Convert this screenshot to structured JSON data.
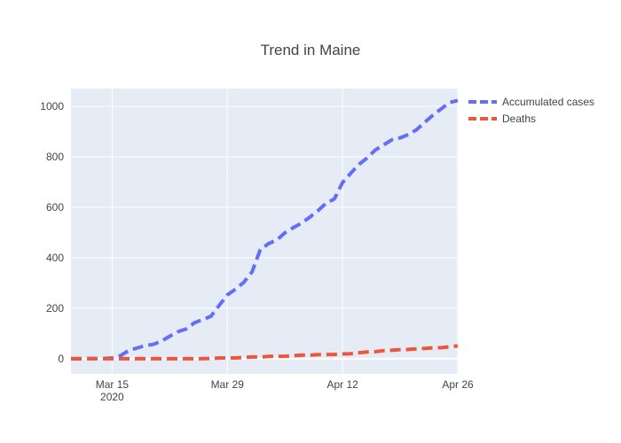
{
  "chart_data": {
    "type": "line",
    "title": "Trend in Maine",
    "xlabel": "",
    "ylabel": "",
    "x_range": [
      "2020-03-10",
      "2020-04-26"
    ],
    "ylim": [
      -60,
      1070
    ],
    "x_ticks": [
      {
        "date": "2020-03-15",
        "label": "Mar 15",
        "sublabel": "2020"
      },
      {
        "date": "2020-03-29",
        "label": "Mar 29",
        "sublabel": ""
      },
      {
        "date": "2020-04-12",
        "label": "Apr 12",
        "sublabel": ""
      },
      {
        "date": "2020-04-26",
        "label": "Apr 26",
        "sublabel": ""
      }
    ],
    "y_ticks": [
      0,
      200,
      400,
      600,
      800,
      1000
    ],
    "grid": true,
    "legend_position": "top-right",
    "background": "#e5ecf6",
    "series": [
      {
        "name": "Accumulated cases",
        "color": "#636efa",
        "dash": "dashed",
        "points": [
          [
            "2020-03-10",
            0
          ],
          [
            "2020-03-12",
            1
          ],
          [
            "2020-03-14",
            1
          ],
          [
            "2020-03-15",
            3
          ],
          [
            "2020-03-16",
            12
          ],
          [
            "2020-03-17",
            32
          ],
          [
            "2020-03-18",
            42
          ],
          [
            "2020-03-19",
            52
          ],
          [
            "2020-03-20",
            57
          ],
          [
            "2020-03-21",
            70
          ],
          [
            "2020-03-22",
            89
          ],
          [
            "2020-03-23",
            107
          ],
          [
            "2020-03-24",
            118
          ],
          [
            "2020-03-25",
            142
          ],
          [
            "2020-03-26",
            155
          ],
          [
            "2020-03-27",
            168
          ],
          [
            "2020-03-28",
            211
          ],
          [
            "2020-03-29",
            253
          ],
          [
            "2020-03-30",
            275
          ],
          [
            "2020-03-31",
            303
          ],
          [
            "2020-04-01",
            344
          ],
          [
            "2020-04-02",
            432
          ],
          [
            "2020-04-03",
            456
          ],
          [
            "2020-04-04",
            470
          ],
          [
            "2020-04-05",
            499
          ],
          [
            "2020-04-06",
            519
          ],
          [
            "2020-04-07",
            537
          ],
          [
            "2020-04-08",
            560
          ],
          [
            "2020-04-09",
            586
          ],
          [
            "2020-04-10",
            616
          ],
          [
            "2020-04-11",
            633
          ],
          [
            "2020-04-12",
            698
          ],
          [
            "2020-04-13",
            735
          ],
          [
            "2020-04-14",
            770
          ],
          [
            "2020-04-15",
            796
          ],
          [
            "2020-04-16",
            827
          ],
          [
            "2020-04-17",
            847
          ],
          [
            "2020-04-18",
            867
          ],
          [
            "2020-04-19",
            875
          ],
          [
            "2020-04-20",
            888
          ],
          [
            "2020-04-21",
            907
          ],
          [
            "2020-04-22",
            937
          ],
          [
            "2020-04-23",
            965
          ],
          [
            "2020-04-24",
            990
          ],
          [
            "2020-04-25",
            1015
          ],
          [
            "2020-04-26",
            1023
          ]
        ]
      },
      {
        "name": "Deaths",
        "color": "#ef553b",
        "dash": "dashed",
        "points": [
          [
            "2020-03-10",
            0
          ],
          [
            "2020-03-15",
            0
          ],
          [
            "2020-03-20",
            0
          ],
          [
            "2020-03-25",
            0
          ],
          [
            "2020-03-27",
            1
          ],
          [
            "2020-03-28",
            3
          ],
          [
            "2020-03-29",
            3
          ],
          [
            "2020-03-30",
            3
          ],
          [
            "2020-03-31",
            5
          ],
          [
            "2020-04-01",
            7
          ],
          [
            "2020-04-02",
            7
          ],
          [
            "2020-04-03",
            9
          ],
          [
            "2020-04-04",
            10
          ],
          [
            "2020-04-05",
            10
          ],
          [
            "2020-04-06",
            12
          ],
          [
            "2020-04-07",
            14
          ],
          [
            "2020-04-08",
            14
          ],
          [
            "2020-04-09",
            16
          ],
          [
            "2020-04-10",
            17
          ],
          [
            "2020-04-11",
            17
          ],
          [
            "2020-04-12",
            19
          ],
          [
            "2020-04-13",
            20
          ],
          [
            "2020-04-14",
            24
          ],
          [
            "2020-04-15",
            27
          ],
          [
            "2020-04-16",
            28
          ],
          [
            "2020-04-17",
            32
          ],
          [
            "2020-04-18",
            34
          ],
          [
            "2020-04-19",
            36
          ],
          [
            "2020-04-20",
            37
          ],
          [
            "2020-04-21",
            39
          ],
          [
            "2020-04-22",
            41
          ],
          [
            "2020-04-23",
            43
          ],
          [
            "2020-04-24",
            44
          ],
          [
            "2020-04-25",
            47
          ],
          [
            "2020-04-26",
            51
          ]
        ]
      }
    ]
  }
}
